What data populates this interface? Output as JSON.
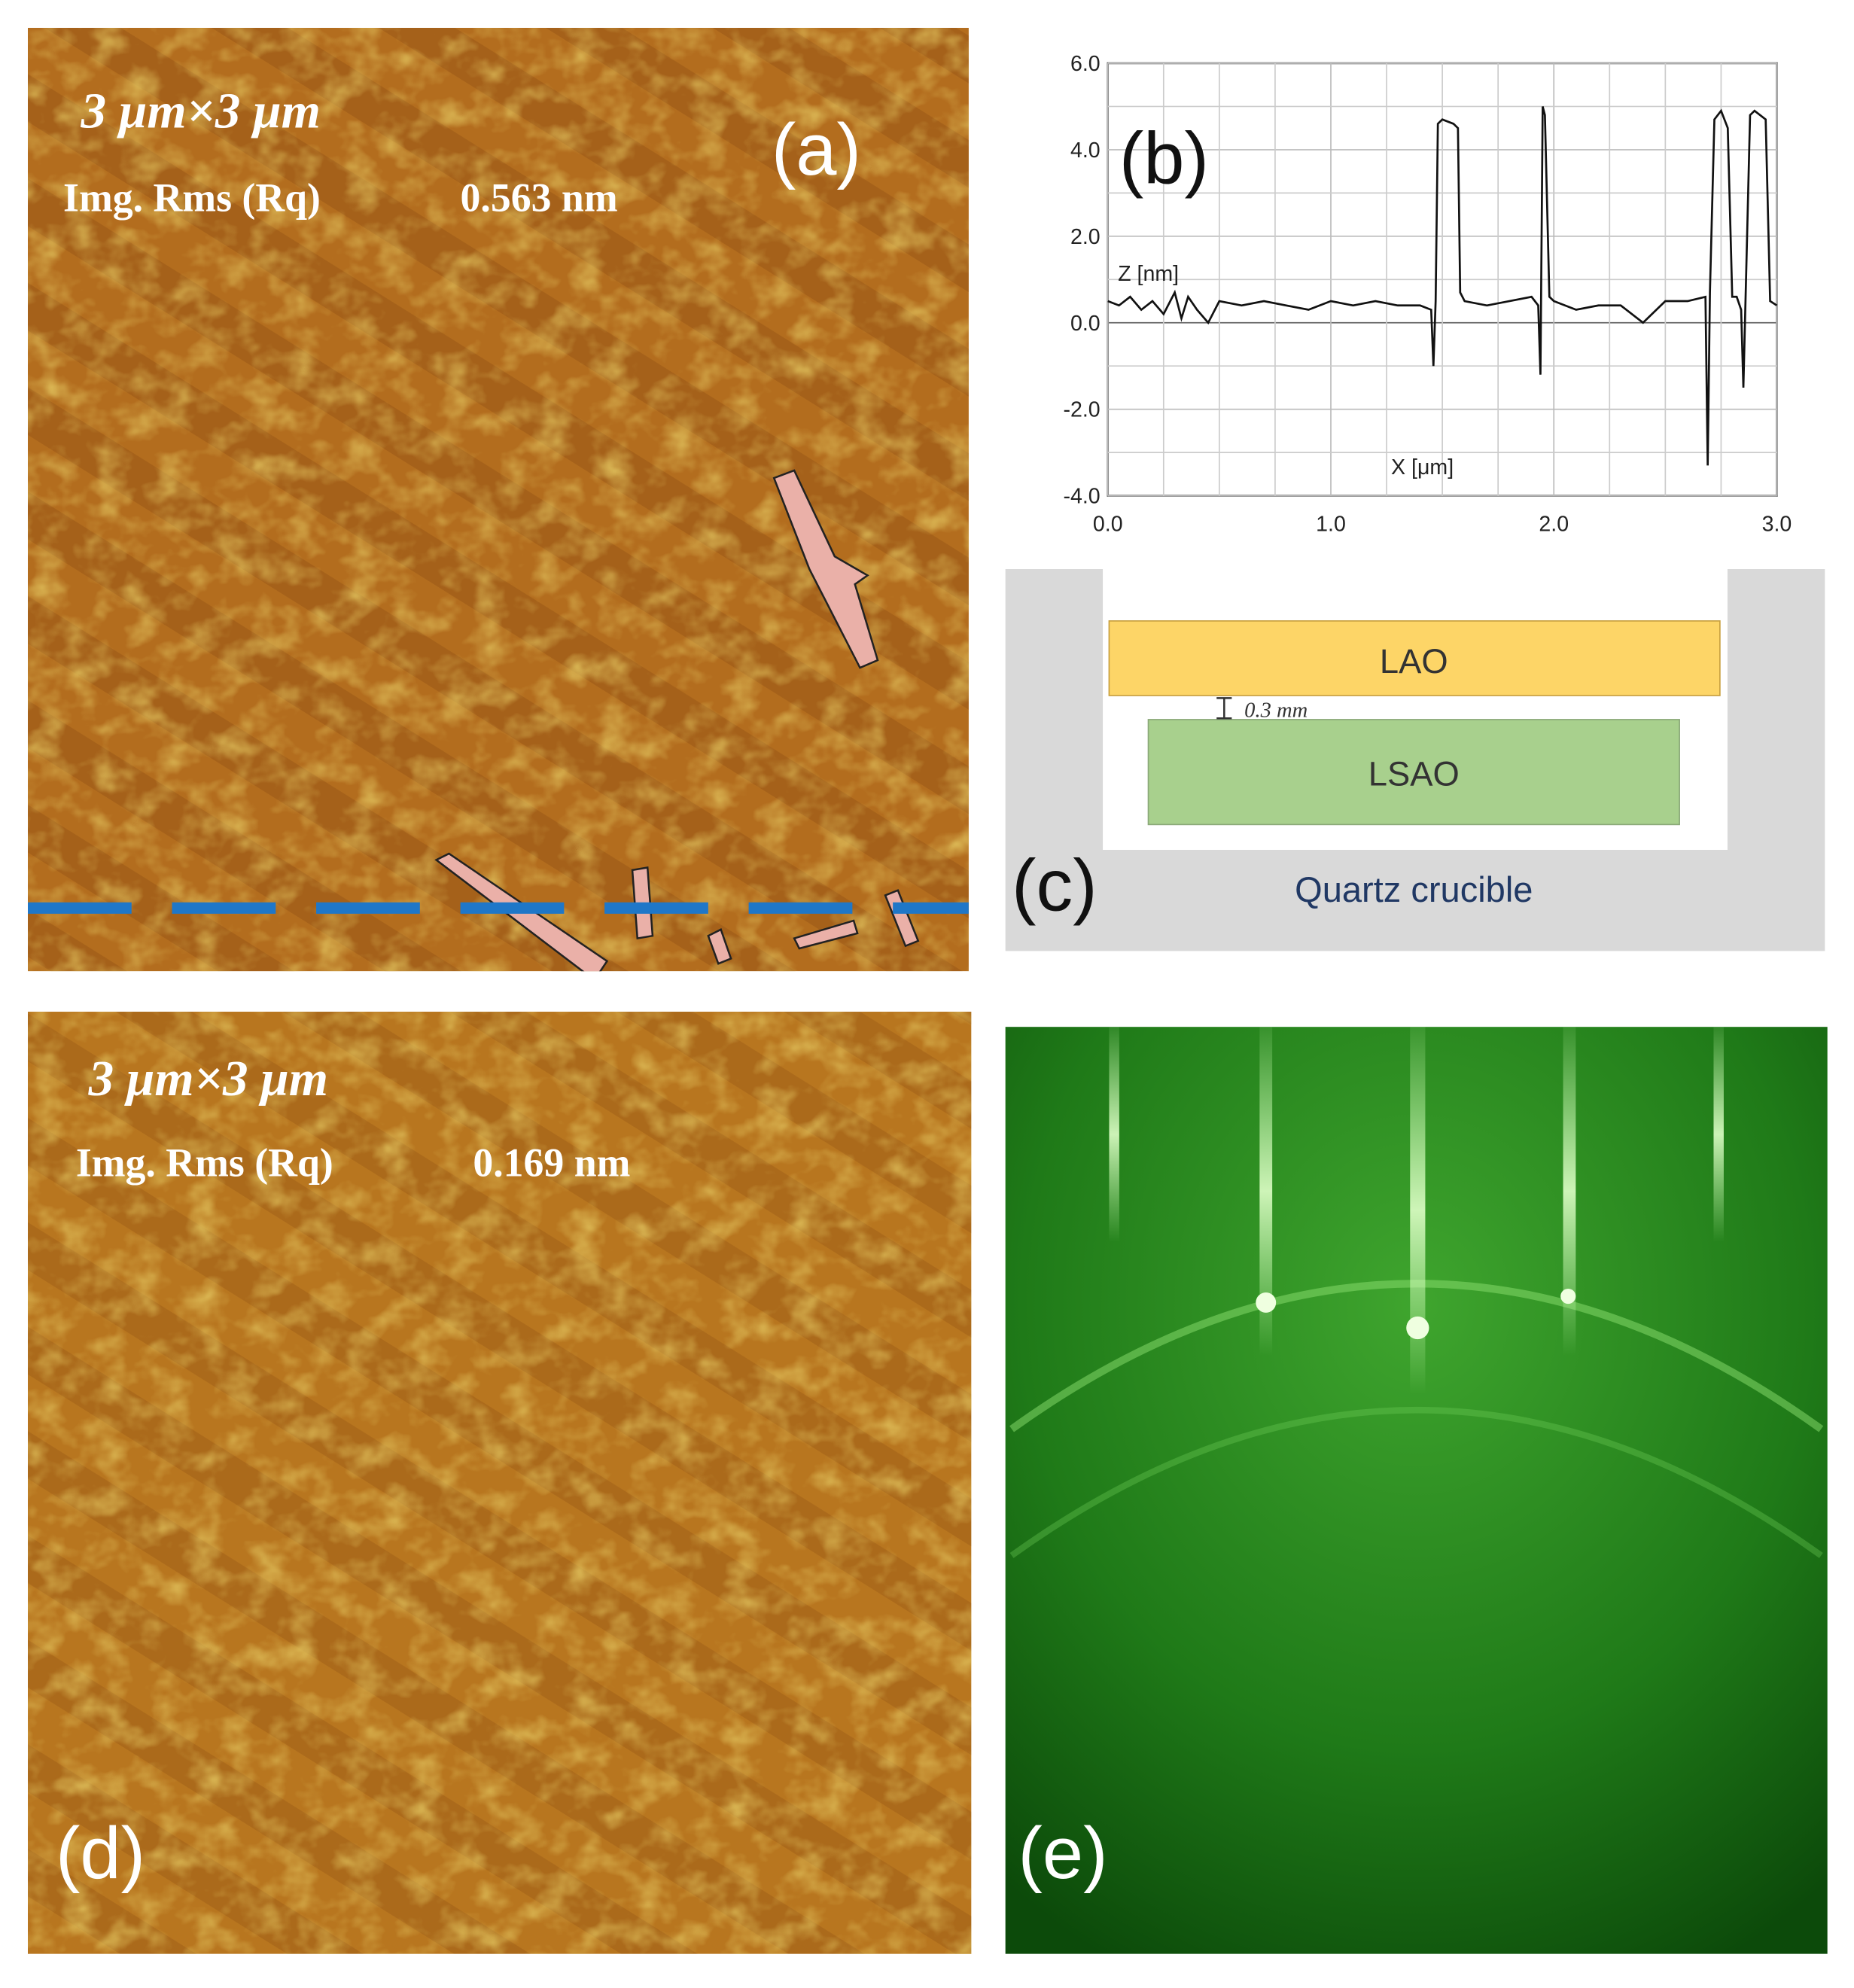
{
  "panel_a": {
    "label": "(a)",
    "scan_size": "3 μm×3 μm",
    "rms_label": "Img. Rms (Rq)",
    "rms_value": "0.563 nm"
  },
  "chart_data": {
    "type": "line",
    "panel_label": "(b)",
    "y_label": "Z [nm]",
    "x_label": "X [μm]",
    "x": [
      0,
      0.05,
      0.1,
      0.15,
      0.2,
      0.25,
      0.3,
      0.33,
      0.36,
      0.4,
      0.45,
      0.5,
      0.6,
      0.7,
      0.8,
      0.9,
      1.0,
      1.1,
      1.2,
      1.3,
      1.4,
      1.45,
      1.46,
      1.47,
      1.48,
      1.5,
      1.55,
      1.57,
      1.58,
      1.6,
      1.7,
      1.8,
      1.9,
      1.93,
      1.94,
      1.95,
      1.96,
      1.98,
      2.0,
      2.1,
      2.2,
      2.3,
      2.4,
      2.5,
      2.6,
      2.68,
      2.69,
      2.7,
      2.72,
      2.75,
      2.78,
      2.8,
      2.82,
      2.84,
      2.85,
      2.86,
      2.88,
      2.9,
      2.95,
      2.97,
      3.0
    ],
    "values": [
      0.5,
      0.4,
      0.6,
      0.3,
      0.5,
      0.2,
      0.7,
      0.1,
      0.6,
      0.3,
      0.0,
      0.5,
      0.4,
      0.5,
      0.4,
      0.3,
      0.5,
      0.4,
      0.5,
      0.4,
      0.4,
      0.3,
      -1.0,
      0.5,
      4.6,
      4.7,
      4.6,
      4.5,
      0.7,
      0.5,
      0.4,
      0.5,
      0.6,
      0.4,
      -1.2,
      5.0,
      4.8,
      0.6,
      0.5,
      0.3,
      0.4,
      0.4,
      0.0,
      0.5,
      0.5,
      0.6,
      -3.3,
      0.7,
      4.7,
      4.9,
      4.5,
      0.6,
      0.6,
      0.3,
      -1.5,
      0.6,
      4.8,
      4.9,
      4.7,
      0.5,
      0.4
    ],
    "color": "#111111",
    "xlim": [
      0,
      3
    ],
    "ylim": [
      -4,
      6
    ],
    "xticks": [
      {
        "value": 0,
        "label": "0.0"
      },
      {
        "value": 1,
        "label": "1.0"
      },
      {
        "value": 2,
        "label": "2.0"
      },
      {
        "value": 3,
        "label": "3.0"
      }
    ],
    "yticks": [
      {
        "value": -4,
        "label": "-4.0"
      },
      {
        "value": -2,
        "label": "-2.0"
      },
      {
        "value": 0,
        "label": "0.0"
      },
      {
        "value": 2,
        "label": "2.0"
      },
      {
        "value": 4,
        "label": "4.0"
      },
      {
        "value": 6,
        "label": "6.0"
      }
    ],
    "grid": true
  },
  "panel_c": {
    "label": "(c)",
    "top_layer": "LAO",
    "gap": "0.3 mm",
    "bottom_layer": "LSAO",
    "container": "Quartz crucible"
  },
  "panel_d": {
    "label": "(d)",
    "scan_size": "3 μm×3 μm",
    "rms_label": "Img. Rms (Rq)",
    "rms_value": "0.169 nm"
  },
  "panel_e": {
    "label": "(e)"
  }
}
